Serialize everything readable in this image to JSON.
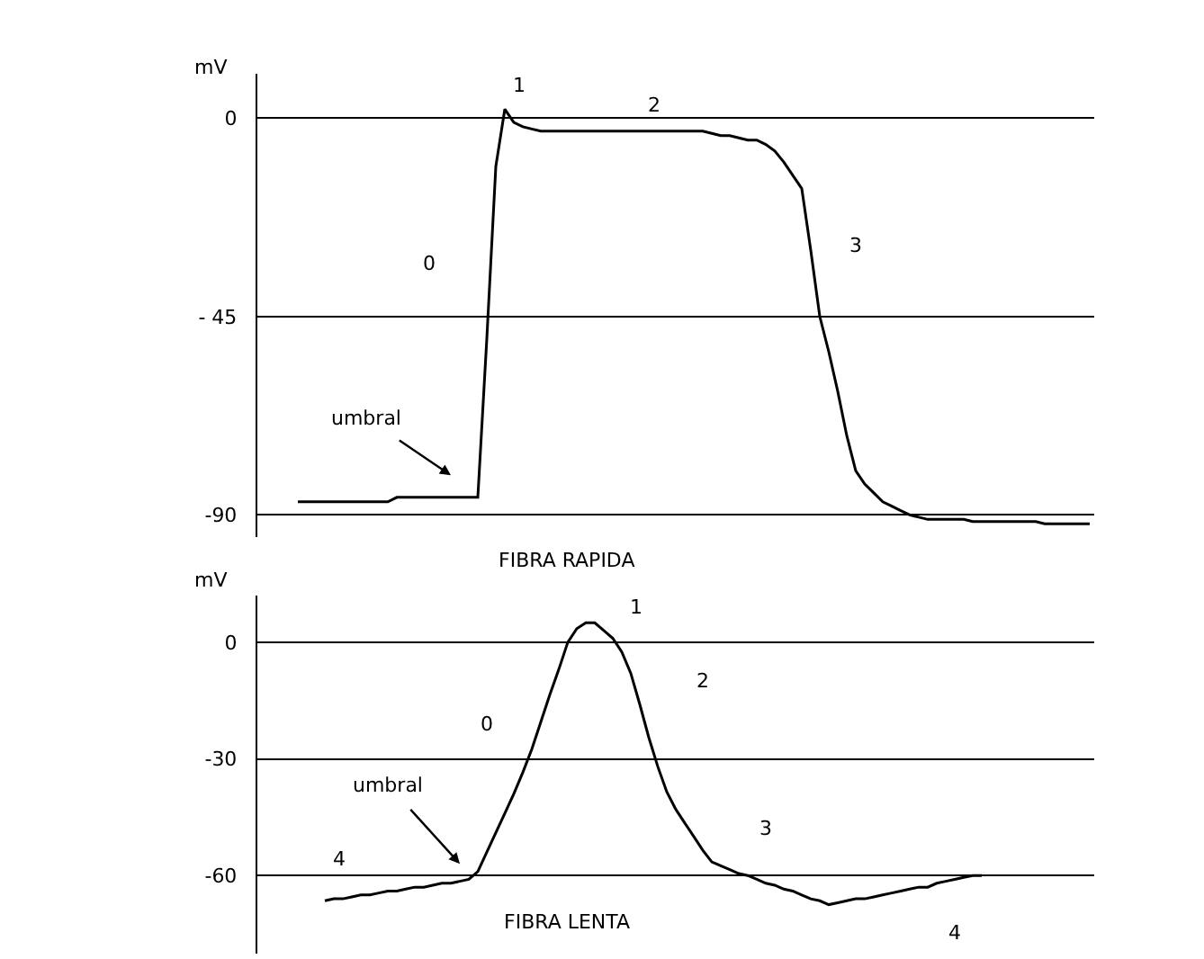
{
  "chart_data": [
    {
      "type": "line",
      "xlabel": "FIBRA RAPIDA",
      "ylabel": "mV",
      "color": "#000000",
      "grid": "y",
      "tick_labels": "y",
      "ylim": [
        -95,
        10
      ],
      "yticks": [
        0,
        {
          "value": -45,
          "label": "- 45"
        },
        -90
      ],
      "categories": [
        null,
        null,
        null,
        null,
        null,
        null,
        null,
        null,
        null,
        null,
        null,
        null,
        null,
        null,
        null,
        null,
        null,
        null,
        null,
        null,
        null,
        null,
        null,
        null,
        null,
        null,
        null,
        null,
        null,
        null,
        null,
        null,
        null,
        null,
        null,
        null,
        null,
        null,
        null,
        null,
        null,
        null,
        null,
        null,
        null,
        null,
        null,
        null,
        null,
        null,
        null,
        null,
        null,
        null,
        null,
        null,
        null,
        null,
        null,
        null,
        null,
        null,
        null,
        null,
        null,
        null,
        null,
        null,
        null,
        null,
        null,
        null,
        null,
        null,
        null,
        null,
        null,
        null,
        null,
        null,
        null,
        null,
        null,
        null,
        null,
        null,
        null,
        null,
        null,
        null,
        null,
        null,
        null
      ],
      "values": [
        null,
        null,
        null,
        null,
        -87,
        -87,
        -87,
        -87,
        -87,
        -87,
        -87,
        -87,
        -87,
        -87,
        -87,
        -86,
        -86,
        -86,
        -86,
        -86,
        -86,
        -86,
        -86,
        -86,
        -86,
        -50,
        -11,
        2,
        -1,
        -2,
        -2.5,
        -3,
        -3,
        -3,
        -3,
        -3,
        -3,
        -3,
        -3,
        -3,
        -3,
        -3,
        -3,
        -3,
        -3,
        -3,
        -3,
        -3,
        -3,
        -3,
        -3.5,
        -4,
        -4,
        -4.5,
        -5,
        -5,
        -6,
        -7.5,
        -10,
        -13,
        -16,
        -30,
        -45,
        -53,
        -62,
        -72,
        -80,
        -83,
        -85,
        -87,
        -88,
        -89,
        -90,
        -90.5,
        -91,
        -91,
        -91,
        -91,
        -91,
        -91.5,
        -91.5,
        -91.5,
        -91.5,
        -91.5,
        -91.5,
        -91.5,
        -91.5,
        -92,
        -92,
        -92,
        -92,
        -92,
        -92
      ],
      "annotations": [
        "1",
        "2",
        "0",
        "3",
        "umbral"
      ]
    },
    {
      "type": "line",
      "xlabel": "FIBRA LENTA",
      "ylabel": "mV",
      "color": "#000000",
      "grid": "y",
      "tick_labels": "y",
      "ylim": [
        -80,
        12
      ],
      "yticks": [
        0,
        -30,
        -60
      ],
      "categories": [
        null,
        null,
        null,
        null,
        null,
        null,
        null,
        null,
        null,
        null,
        null,
        null,
        null,
        null,
        null,
        null,
        null,
        null,
        null,
        null,
        null,
        null,
        null,
        null,
        null,
        null,
        null,
        null,
        null,
        null,
        null,
        null,
        null,
        null,
        null,
        null,
        null,
        null,
        null,
        null,
        null,
        null,
        null,
        null,
        null,
        null,
        null,
        null,
        null,
        null,
        null,
        null,
        null,
        null,
        null,
        null,
        null,
        null,
        null,
        null,
        null,
        null,
        null,
        null,
        null,
        null,
        null,
        null,
        null,
        null,
        null,
        null,
        null,
        null,
        null,
        null,
        null,
        null,
        null,
        null,
        null,
        null,
        null,
        null,
        null,
        null,
        null,
        null,
        null,
        null,
        null,
        null,
        null
      ],
      "values": [
        null,
        null,
        null,
        null,
        null,
        null,
        null,
        -66.5,
        -66,
        -66,
        -65.5,
        -65,
        -65,
        -64.5,
        -64,
        -64,
        -63.5,
        -63,
        -63,
        -62.5,
        -62,
        -62,
        -61.5,
        -61,
        -59,
        -54,
        -49,
        -44,
        -39,
        -33.5,
        -27.5,
        -20.5,
        -13.5,
        -7,
        0,
        3.5,
        5,
        5,
        3,
        1,
        -2.5,
        -8,
        -16,
        -24.5,
        -32,
        -38.5,
        -43,
        -46.5,
        -50,
        -53.5,
        -56.5,
        -57.5,
        -58.5,
        -59.5,
        -60,
        -61,
        -62,
        -62.5,
        -63.5,
        -64,
        -65,
        -66,
        -66.5,
        -67.5,
        -67,
        -66.5,
        -66,
        -66,
        -65.5,
        -65,
        -64.5,
        -64,
        -63.5,
        -63,
        -63,
        -62,
        -61.5,
        -61,
        -60.5,
        -60,
        -60,
        null,
        null,
        null,
        null,
        null,
        null,
        null,
        null,
        null,
        null,
        null,
        null
      ],
      "annotations": [
        "1",
        "2",
        "0",
        "3",
        "umbral",
        "4",
        "4"
      ]
    }
  ]
}
